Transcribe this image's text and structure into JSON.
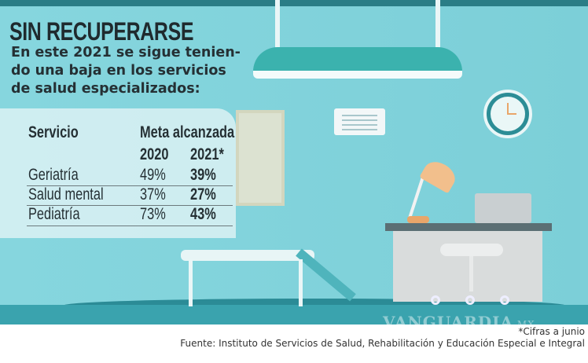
{
  "header": {
    "title": "SIN RECUPERARSE",
    "subtitle_lines": [
      "En este 2021 se sigue tenien-",
      "do una baja en los servicios",
      "de salud especializados:"
    ]
  },
  "table": {
    "col_service": "Servicio",
    "col_group": "Meta alcanzada",
    "years": [
      "2020",
      "2021*"
    ],
    "rows": [
      {
        "service": "Geriatría",
        "v2020": "49%",
        "v2021": "39%"
      },
      {
        "service": "Salud mental",
        "v2020": "37%",
        "v2021": "27%"
      },
      {
        "service": "Pediatría",
        "v2020": "73%",
        "v2021": "43%"
      }
    ]
  },
  "footer": {
    "note": "*Cifras a junio",
    "source": "Fuente: Instituto de Servicios de Salud, Rehabilitación y Educación Especial e Integral"
  },
  "watermark": "VANGUARDIA.MX",
  "colors": {
    "wall": "#7dd0d8",
    "floor": "#3aa3ae",
    "text": "#253034"
  }
}
